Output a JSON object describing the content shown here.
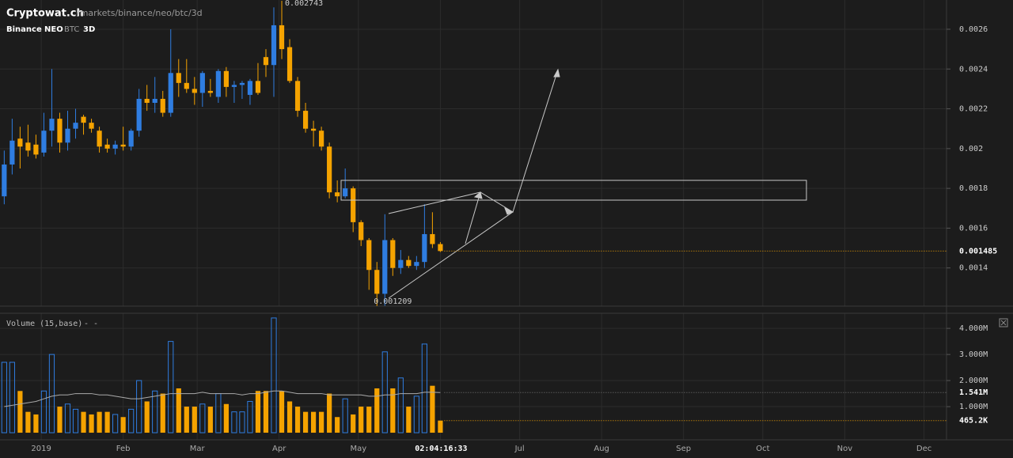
{
  "header": {
    "site": "Cryptowat.ch",
    "path": "/markets/binance/neo/btc/3d",
    "exchange": "Binance",
    "market": "NEO",
    "quote": "BTC",
    "interval": "3D"
  },
  "chart_data": {
    "type": "candlestick",
    "up_color": "#2f7de1",
    "down_color": "#f5a300",
    "xlim": [
      -15.6,
      342.5
    ],
    "xticks": [
      {
        "value": 0,
        "label": "2019"
      },
      {
        "value": 31,
        "label": "Feb"
      },
      {
        "value": 59,
        "label": "Mar"
      },
      {
        "value": 90,
        "label": "Apr"
      },
      {
        "value": 120,
        "label": "May"
      },
      {
        "value": 181,
        "label": "Jul"
      },
      {
        "value": 212,
        "label": "Aug"
      },
      {
        "value": 243,
        "label": "Sep"
      },
      {
        "value": 273,
        "label": "Oct"
      },
      {
        "value": 304,
        "label": "Nov"
      },
      {
        "value": 334,
        "label": "Dec"
      }
    ],
    "countdown": "02:04:16:33",
    "ylim": [
      0.001208,
      0.002747
    ],
    "yticks": [
      0.0026,
      0.0024,
      0.0022,
      0.002,
      0.0018,
      0.0016,
      0.0014
    ],
    "grid": true,
    "candles": {
      "x": [
        -14,
        -11,
        -8,
        -5,
        -2,
        1,
        4,
        7,
        10,
        13,
        16,
        19,
        22,
        25,
        28,
        31,
        34,
        37,
        40,
        43,
        46,
        49,
        52,
        55,
        58,
        61,
        64,
        67,
        70,
        73,
        76,
        79,
        82,
        85,
        88,
        91,
        94,
        97,
        100,
        103,
        106,
        109,
        112,
        115,
        118,
        121,
        124,
        127,
        130,
        133,
        136,
        139,
        142,
        145,
        148,
        151
      ],
      "open": [
        0.00176,
        0.00192,
        0.00205,
        0.00203,
        0.00202,
        0.00198,
        0.00209,
        0.00215,
        0.00203,
        0.0021,
        0.00216,
        0.00213,
        0.00209,
        0.00202,
        0.002,
        0.00202,
        0.00201,
        0.00209,
        0.00225,
        0.00223,
        0.00225,
        0.00218,
        0.00238,
        0.00233,
        0.0023,
        0.00228,
        0.00229,
        0.00226,
        0.00239,
        0.00231,
        0.00232,
        0.00227,
        0.00234,
        0.00246,
        0.00242,
        0.00262,
        0.00251,
        0.00234,
        0.00219,
        0.0021,
        0.00209,
        0.00201,
        0.00178,
        0.00176,
        0.0018,
        0.00163,
        0.00154,
        0.00139,
        0.00127,
        0.00154,
        0.0014,
        0.00144,
        0.00141,
        0.00143,
        0.00157,
        0.00152
      ],
      "high": [
        0.00199,
        0.00215,
        0.00211,
        0.00212,
        0.00207,
        0.00218,
        0.0024,
        0.00218,
        0.00219,
        0.0022,
        0.00217,
        0.00215,
        0.00211,
        0.00205,
        0.00204,
        0.00211,
        0.0021,
        0.0023,
        0.00232,
        0.00236,
        0.00229,
        0.0026,
        0.00245,
        0.00245,
        0.00236,
        0.00239,
        0.00235,
        0.0024,
        0.00241,
        0.00234,
        0.00234,
        0.00235,
        0.00243,
        0.0025,
        0.00271,
        0.002743,
        0.00255,
        0.00236,
        0.00223,
        0.00214,
        0.00211,
        0.00203,
        0.00184,
        0.0019,
        0.00181,
        0.00164,
        0.00155,
        0.00143,
        0.00167,
        0.00155,
        0.00149,
        0.00146,
        0.00146,
        0.00172,
        0.00168,
        0.00153
      ],
      "low": [
        0.00172,
        0.00187,
        0.0019,
        0.00196,
        0.00195,
        0.00196,
        0.00201,
        0.00198,
        0.00199,
        0.00205,
        0.00207,
        0.00208,
        0.00198,
        0.00198,
        0.00197,
        0.00199,
        0.00199,
        0.00206,
        0.00219,
        0.00218,
        0.00216,
        0.00216,
        0.00226,
        0.00228,
        0.00222,
        0.00221,
        0.00226,
        0.00223,
        0.00226,
        0.00223,
        0.00225,
        0.00222,
        0.00227,
        0.00236,
        0.00226,
        0.00245,
        0.00233,
        0.00216,
        0.00208,
        0.00201,
        0.00199,
        0.00175,
        0.00173,
        0.00175,
        0.00158,
        0.00151,
        0.00129,
        0.001209,
        0.00121,
        0.00136,
        0.00137,
        0.0014,
        0.00139,
        0.0014,
        0.0015,
        0.00148
      ],
      "close": [
        0.00192,
        0.00204,
        0.00201,
        0.00199,
        0.00197,
        0.00209,
        0.00215,
        0.00203,
        0.0021,
        0.00213,
        0.00213,
        0.0021,
        0.00201,
        0.002,
        0.00202,
        0.00201,
        0.00209,
        0.00225,
        0.00223,
        0.00225,
        0.00218,
        0.00238,
        0.00233,
        0.0023,
        0.00228,
        0.00238,
        0.00228,
        0.00239,
        0.00231,
        0.00232,
        0.00233,
        0.00234,
        0.00228,
        0.00242,
        0.00262,
        0.0025,
        0.00234,
        0.00219,
        0.0021,
        0.00209,
        0.00201,
        0.00178,
        0.00176,
        0.0018,
        0.00163,
        0.00154,
        0.00139,
        0.00127,
        0.00154,
        0.0014,
        0.00144,
        0.00141,
        0.00143,
        0.00157,
        0.00152,
        0.001485
      ]
    },
    "volume_label": "Volume (15,base)",
    "volume_values": "- -",
    "volume_ylim": [
      -0.09,
      4.58
    ],
    "volume_yticks": [
      {
        "value": 4,
        "label": "4.000M"
      },
      {
        "value": 3,
        "label": "3.000M"
      },
      {
        "value": 2,
        "label": "2.000M"
      },
      {
        "value": 1,
        "label": "1.000M"
      }
    ],
    "volume": [
      2.7,
      2.7,
      1.6,
      0.8,
      0.7,
      1.6,
      3.0,
      1.0,
      1.1,
      0.9,
      0.8,
      0.7,
      0.8,
      0.8,
      0.7,
      0.6,
      0.9,
      2.0,
      1.2,
      1.6,
      1.5,
      3.5,
      1.7,
      1.0,
      1.0,
      1.1,
      1.0,
      1.5,
      1.1,
      0.8,
      0.8,
      1.2,
      1.6,
      1.6,
      4.4,
      1.6,
      1.2,
      1.0,
      0.8,
      0.8,
      0.8,
      1.5,
      0.6,
      1.3,
      0.7,
      1.0,
      1.0,
      1.7,
      3.1,
      1.7,
      2.1,
      1.0,
      1.4,
      3.4,
      1.8,
      0.4652
    ],
    "volume_ma_color": "#aaaaaa",
    "volume_ma": [
      1.0,
      1.05,
      1.1,
      1.15,
      1.2,
      1.3,
      1.4,
      1.45,
      1.45,
      1.5,
      1.5,
      1.5,
      1.45,
      1.45,
      1.4,
      1.35,
      1.3,
      1.3,
      1.35,
      1.4,
      1.45,
      1.5,
      1.5,
      1.5,
      1.5,
      1.55,
      1.5,
      1.5,
      1.5,
      1.5,
      1.45,
      1.5,
      1.5,
      1.55,
      1.6,
      1.6,
      1.55,
      1.5,
      1.5,
      1.5,
      1.5,
      1.45,
      1.45,
      1.45,
      1.45,
      1.45,
      1.4,
      1.4,
      1.45,
      1.45,
      1.5,
      1.5,
      1.5,
      1.55,
      1.55,
      1.541
    ],
    "volume_last": {
      "value": 0.4652,
      "label": "465.2K"
    },
    "volume_ma_last": {
      "value": 1.541,
      "label": "1.541M"
    }
  }
}
